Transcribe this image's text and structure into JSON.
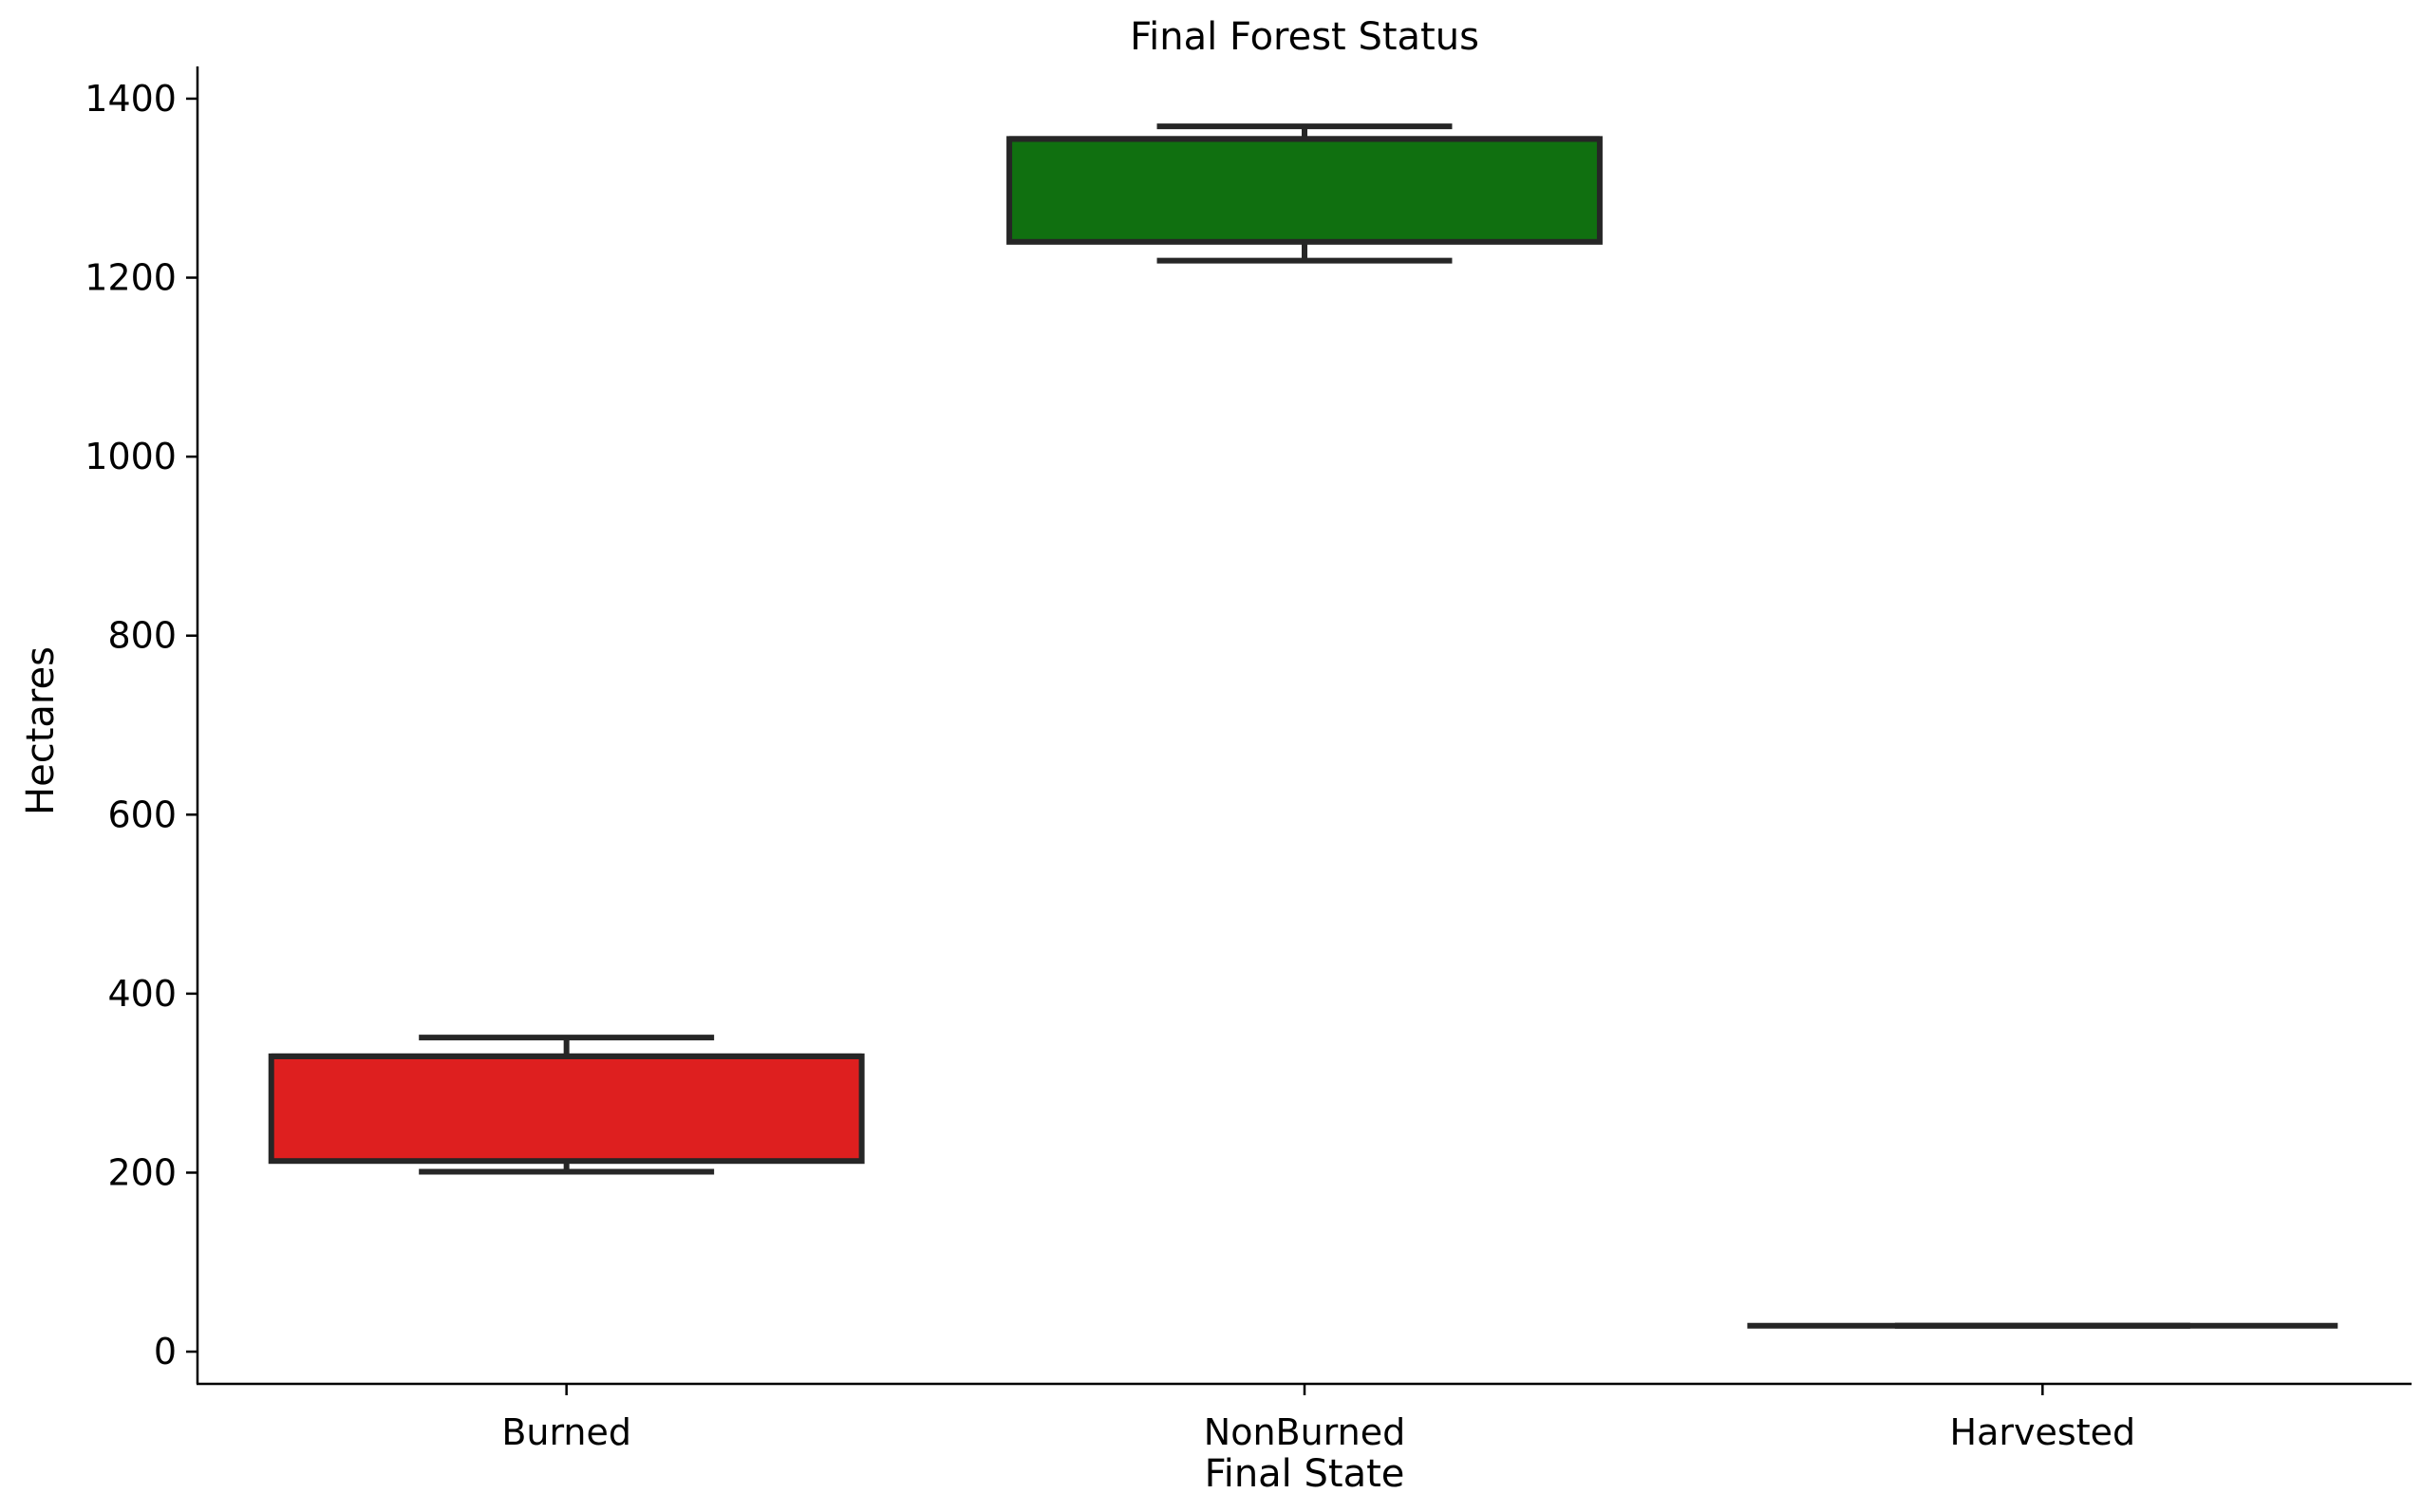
{
  "chart_data": {
    "type": "box",
    "title": "Final Forest Status",
    "xlabel": "Final State",
    "ylabel": "Hectares",
    "ylim": [
      -36,
      1436
    ],
    "yticks": [
      0,
      200,
      400,
      600,
      800,
      1000,
      1200,
      1400
    ],
    "grid": false,
    "categories": [
      "Burned",
      "NonBurned",
      "Harvested"
    ],
    "boxes": [
      {
        "category": "Burned",
        "whisker_low": 201,
        "q1": 213,
        "median": 330,
        "q3": 330,
        "whisker_high": 351,
        "color": "#de1f1f"
      },
      {
        "category": "NonBurned",
        "whisker_low": 1219,
        "q1": 1240,
        "median": 1355,
        "q3": 1355,
        "whisker_high": 1369,
        "color": "#107010"
      },
      {
        "category": "Harvested",
        "whisker_low": 29,
        "q1": 29,
        "median": 29,
        "q3": 29,
        "whisker_high": 29,
        "color": "#1f77b4"
      }
    ]
  }
}
